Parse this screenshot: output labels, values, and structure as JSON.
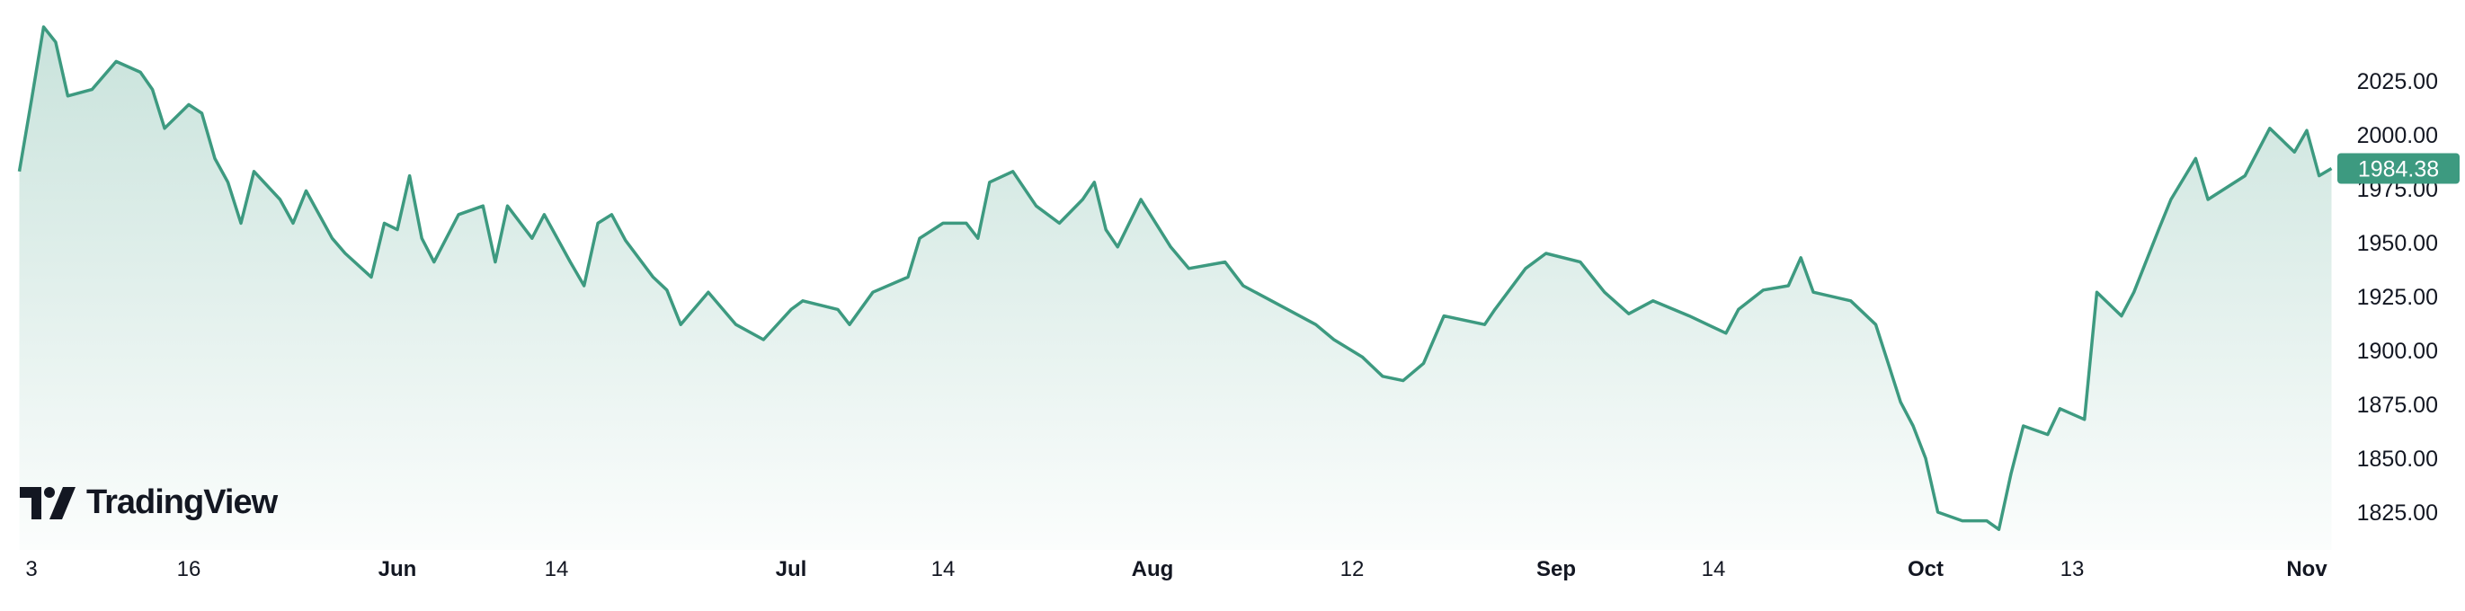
{
  "brand": {
    "logo_text": "TradingView"
  },
  "chart_data": {
    "type": "area",
    "last_price_label": "1984.38",
    "colors": {
      "line": "#3d9a80",
      "fill": "#3d9a80",
      "price_label_bg": "#3d9a80"
    },
    "ylim": [
      1810,
      2055
    ],
    "y_ticks": [
      "2025.00",
      "2000.00",
      "1975.00",
      "1950.00",
      "1925.00",
      "1900.00",
      "1875.00",
      "1850.00",
      "1825.00"
    ],
    "x_ticks": [
      {
        "label": "3",
        "date": "2023-05-03",
        "month": false
      },
      {
        "label": "16",
        "date": "2023-05-16",
        "month": false
      },
      {
        "label": "Jun",
        "date": "2023-06-01",
        "month": true
      },
      {
        "label": "14",
        "date": "2023-06-14",
        "month": false
      },
      {
        "label": "Jul",
        "date": "2023-07-01",
        "month": true
      },
      {
        "label": "14",
        "date": "2023-07-14",
        "month": false
      },
      {
        "label": "Aug",
        "date": "2023-08-01",
        "month": true
      },
      {
        "label": "12",
        "date": "2023-08-12",
        "month": false
      },
      {
        "label": "Sep",
        "date": "2023-09-01",
        "month": true
      },
      {
        "label": "14",
        "date": "2023-09-14",
        "month": false
      },
      {
        "label": "Oct",
        "date": "2023-10-01",
        "month": true
      },
      {
        "label": "13",
        "date": "2023-10-13",
        "month": false
      },
      {
        "label": "Nov",
        "date": "2023-11-01",
        "month": true
      }
    ],
    "grid": false,
    "points": [
      [
        "2023-05-02",
        1983
      ],
      [
        "2023-05-03",
        2016
      ],
      [
        "2023-05-04",
        2050
      ],
      [
        "2023-05-05",
        2043
      ],
      [
        "2023-05-06",
        2018
      ],
      [
        "2023-05-08",
        2021
      ],
      [
        "2023-05-10",
        2034
      ],
      [
        "2023-05-12",
        2029
      ],
      [
        "2023-05-13",
        2021
      ],
      [
        "2023-05-14",
        2003
      ],
      [
        "2023-05-16",
        2014
      ],
      [
        "2023-05-17",
        2010
      ],
      [
        "2023-05-18",
        1989
      ],
      [
        "2023-05-19",
        1978
      ],
      [
        "2023-05-20",
        1959
      ],
      [
        "2023-05-21",
        1983
      ],
      [
        "2023-05-23",
        1970
      ],
      [
        "2023-05-24",
        1959
      ],
      [
        "2023-05-25",
        1974
      ],
      [
        "2023-05-27",
        1952
      ],
      [
        "2023-05-28",
        1945
      ],
      [
        "2023-05-30",
        1934
      ],
      [
        "2023-05-31",
        1959
      ],
      [
        "2023-06-01",
        1956
      ],
      [
        "2023-06-02",
        1981
      ],
      [
        "2023-06-03",
        1952
      ],
      [
        "2023-06-04",
        1941
      ],
      [
        "2023-06-06",
        1963
      ],
      [
        "2023-06-08",
        1967
      ],
      [
        "2023-06-09",
        1941
      ],
      [
        "2023-06-10",
        1967
      ],
      [
        "2023-06-12",
        1952
      ],
      [
        "2023-06-13",
        1963
      ],
      [
        "2023-06-15",
        1941
      ],
      [
        "2023-06-16",
        1930
      ],
      [
        "2023-06-17",
        1959
      ],
      [
        "2023-06-18",
        1963
      ],
      [
        "2023-06-19",
        1951
      ],
      [
        "2023-06-21",
        1934
      ],
      [
        "2023-06-22",
        1928
      ],
      [
        "2023-06-23",
        1912
      ],
      [
        "2023-06-25",
        1927
      ],
      [
        "2023-06-27",
        1912
      ],
      [
        "2023-06-29",
        1905
      ],
      [
        "2023-07-01",
        1919
      ],
      [
        "2023-07-02",
        1923
      ],
      [
        "2023-07-05",
        1919
      ],
      [
        "2023-07-06",
        1912
      ],
      [
        "2023-07-08",
        1927
      ],
      [
        "2023-07-11",
        1934
      ],
      [
        "2023-07-12",
        1952
      ],
      [
        "2023-07-14",
        1959
      ],
      [
        "2023-07-16",
        1959
      ],
      [
        "2023-07-17",
        1952
      ],
      [
        "2023-07-18",
        1978
      ],
      [
        "2023-07-20",
        1983
      ],
      [
        "2023-07-22",
        1967
      ],
      [
        "2023-07-24",
        1959
      ],
      [
        "2023-07-26",
        1970
      ],
      [
        "2023-07-27",
        1978
      ],
      [
        "2023-07-28",
        1956
      ],
      [
        "2023-07-29",
        1948
      ],
      [
        "2023-07-31",
        1970
      ],
      [
        "2023-08-02",
        1948
      ],
      [
        "2023-08-03",
        1938
      ],
      [
        "2023-08-05",
        1941
      ],
      [
        "2023-08-06",
        1930
      ],
      [
        "2023-08-08",
        1921
      ],
      [
        "2023-08-10",
        1912
      ],
      [
        "2023-08-11",
        1905
      ],
      [
        "2023-08-13",
        1897
      ],
      [
        "2023-08-15",
        1888
      ],
      [
        "2023-08-17",
        1886
      ],
      [
        "2023-08-19",
        1894
      ],
      [
        "2023-08-21",
        1916
      ],
      [
        "2023-08-25",
        1912
      ],
      [
        "2023-08-26",
        1919
      ],
      [
        "2023-08-29",
        1938
      ],
      [
        "2023-08-31",
        1945
      ],
      [
        "2023-09-03",
        1941
      ],
      [
        "2023-09-05",
        1927
      ],
      [
        "2023-09-07",
        1917
      ],
      [
        "2023-09-09",
        1923
      ],
      [
        "2023-09-12",
        1916
      ],
      [
        "2023-09-15",
        1908
      ],
      [
        "2023-09-16",
        1919
      ],
      [
        "2023-09-18",
        1928
      ],
      [
        "2023-09-20",
        1930
      ],
      [
        "2023-09-21",
        1943
      ],
      [
        "2023-09-22",
        1927
      ],
      [
        "2023-09-25",
        1923
      ],
      [
        "2023-09-27",
        1912
      ],
      [
        "2023-09-28",
        1894
      ],
      [
        "2023-09-29",
        1876
      ],
      [
        "2023-09-30",
        1865
      ],
      [
        "2023-10-01",
        1850
      ],
      [
        "2023-10-02",
        1825
      ],
      [
        "2023-10-04",
        1821
      ],
      [
        "2023-10-06",
        1821
      ],
      [
        "2023-10-07",
        1817
      ],
      [
        "2023-10-08",
        1843
      ],
      [
        "2023-10-09",
        1865
      ],
      [
        "2023-10-11",
        1861
      ],
      [
        "2023-10-12",
        1873
      ],
      [
        "2023-10-14",
        1868
      ],
      [
        "2023-10-15",
        1927
      ],
      [
        "2023-10-17",
        1916
      ],
      [
        "2023-10-18",
        1927
      ],
      [
        "2023-10-20",
        1956
      ],
      [
        "2023-10-21",
        1970
      ],
      [
        "2023-10-23",
        1989
      ],
      [
        "2023-10-24",
        1970
      ],
      [
        "2023-10-27",
        1981
      ],
      [
        "2023-10-29",
        2003
      ],
      [
        "2023-10-31",
        1992
      ],
      [
        "2023-11-01",
        2002
      ],
      [
        "2023-11-02",
        1981
      ],
      [
        "2023-11-03",
        1984.38
      ]
    ]
  }
}
